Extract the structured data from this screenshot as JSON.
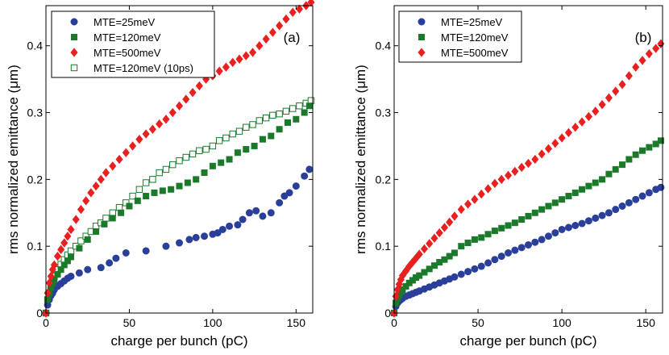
{
  "chart_data": [
    {
      "type": "scatter",
      "panel_label": "(a)",
      "xlabel": "charge per bunch (pC)",
      "ylabel": "rms normalized emittance (μm)",
      "xlim": [
        0,
        160
      ],
      "ylim": [
        0,
        0.46
      ],
      "xticks": [
        "0",
        "50",
        "100",
        "150"
      ],
      "xtick_values": [
        0,
        50,
        100,
        150
      ],
      "yticks": [
        "0",
        "0.1",
        "0.2",
        "0.3",
        "0.4"
      ],
      "ytick_values": [
        0,
        0.1,
        0.2,
        0.3,
        0.4
      ],
      "legend_position": "top-left",
      "series": [
        {
          "name": "MTE=25meV",
          "marker": "circle",
          "color": "#2a3f9a",
          "filled": true,
          "x": [
            0,
            1,
            2,
            3,
            4,
            5,
            7,
            9,
            11,
            13,
            15,
            20,
            25,
            33,
            38,
            42,
            48,
            60,
            72,
            80,
            86,
            90,
            95,
            100,
            103,
            106,
            110,
            115,
            118,
            122,
            126,
            130,
            135,
            140,
            143,
            146,
            150,
            155,
            158
          ],
          "y": [
            0,
            0.012,
            0.02,
            0.026,
            0.03,
            0.035,
            0.04,
            0.044,
            0.048,
            0.052,
            0.055,
            0.06,
            0.065,
            0.068,
            0.075,
            0.082,
            0.09,
            0.093,
            0.1,
            0.105,
            0.11,
            0.113,
            0.115,
            0.118,
            0.12,
            0.125,
            0.13,
            0.132,
            0.14,
            0.15,
            0.153,
            0.145,
            0.15,
            0.165,
            0.175,
            0.18,
            0.19,
            0.205,
            0.215
          ]
        },
        {
          "name": "MTE=120meV",
          "marker": "square",
          "color": "#1a7a2a",
          "filled": true,
          "x": [
            0,
            1,
            2,
            3,
            4,
            5,
            7,
            9,
            11,
            13,
            15,
            20,
            25,
            30,
            35,
            40,
            45,
            50,
            55,
            60,
            65,
            70,
            75,
            80,
            85,
            90,
            95,
            100,
            105,
            110,
            115,
            120,
            125,
            130,
            135,
            140,
            145,
            150,
            155,
            158
          ],
          "y": [
            0,
            0.02,
            0.03,
            0.038,
            0.045,
            0.05,
            0.058,
            0.065,
            0.072,
            0.078,
            0.084,
            0.097,
            0.11,
            0.122,
            0.133,
            0.142,
            0.15,
            0.16,
            0.168,
            0.175,
            0.18,
            0.183,
            0.185,
            0.19,
            0.195,
            0.2,
            0.21,
            0.22,
            0.225,
            0.23,
            0.24,
            0.245,
            0.25,
            0.26,
            0.265,
            0.275,
            0.285,
            0.29,
            0.3,
            0.31
          ]
        },
        {
          "name": "MTE=500meV",
          "marker": "diamond",
          "color": "#e82020",
          "filled": true,
          "x": [
            0,
            1,
            2,
            3,
            4,
            5,
            7,
            9,
            11,
            13,
            15,
            18,
            21,
            24,
            27,
            30,
            33,
            36,
            40,
            44,
            48,
            52,
            56,
            60,
            64,
            68,
            72,
            76,
            80,
            84,
            88,
            92,
            96,
            100,
            104,
            108,
            112,
            116,
            120,
            124,
            128,
            132,
            136,
            140,
            144,
            148,
            152,
            156,
            159
          ],
          "y": [
            0,
            0.03,
            0.045,
            0.055,
            0.065,
            0.072,
            0.085,
            0.095,
            0.105,
            0.115,
            0.125,
            0.14,
            0.155,
            0.168,
            0.18,
            0.19,
            0.2,
            0.21,
            0.22,
            0.23,
            0.24,
            0.25,
            0.26,
            0.268,
            0.275,
            0.283,
            0.29,
            0.3,
            0.31,
            0.32,
            0.33,
            0.34,
            0.35,
            0.355,
            0.362,
            0.368,
            0.375,
            0.38,
            0.385,
            0.39,
            0.4,
            0.41,
            0.42,
            0.43,
            0.44,
            0.45,
            0.455,
            0.46,
            0.465
          ]
        },
        {
          "name": "MTE=120meV (10ps)",
          "marker": "square",
          "color": "#1a7a2a",
          "filled": false,
          "x": [
            0,
            1,
            2,
            3,
            4,
            5,
            7,
            9,
            11,
            13,
            15,
            18,
            21,
            24,
            27,
            30,
            33,
            36,
            40,
            44,
            48,
            52,
            56,
            60,
            64,
            68,
            72,
            76,
            80,
            84,
            88,
            92,
            96,
            100,
            104,
            108,
            112,
            116,
            120,
            124,
            128,
            132,
            136,
            140,
            144,
            148,
            152,
            156,
            159
          ],
          "y": [
            0,
            0.02,
            0.03,
            0.04,
            0.048,
            0.055,
            0.065,
            0.073,
            0.08,
            0.087,
            0.093,
            0.1,
            0.108,
            0.115,
            0.122,
            0.13,
            0.135,
            0.142,
            0.15,
            0.158,
            0.165,
            0.175,
            0.185,
            0.195,
            0.2,
            0.21,
            0.215,
            0.222,
            0.228,
            0.233,
            0.238,
            0.243,
            0.245,
            0.25,
            0.258,
            0.262,
            0.268,
            0.272,
            0.278,
            0.282,
            0.288,
            0.292,
            0.296,
            0.298,
            0.302,
            0.306,
            0.31,
            0.314,
            0.318
          ]
        }
      ]
    },
    {
      "type": "scatter",
      "panel_label": "(b)",
      "xlabel": "charge per bunch (pC)",
      "ylabel": "rms normalized emittance (μm)",
      "xlim": [
        0,
        160
      ],
      "ylim": [
        0,
        0.46
      ],
      "xticks": [
        "0",
        "50",
        "100",
        "150"
      ],
      "xtick_values": [
        0,
        50,
        100,
        150
      ],
      "yticks": [
        "0",
        "0.1",
        "0.2",
        "0.3",
        "0.4"
      ],
      "ytick_values": [
        0,
        0.1,
        0.2,
        0.3,
        0.4
      ],
      "legend_position": "top-left",
      "series": [
        {
          "name": "MTE=25meV",
          "marker": "circle",
          "color": "#2a3f9a",
          "filled": true,
          "x": [
            0,
            1,
            2,
            3,
            4,
            5,
            7,
            9,
            11,
            13,
            15,
            18,
            21,
            24,
            27,
            30,
            33,
            36,
            40,
            44,
            48,
            52,
            56,
            60,
            64,
            68,
            72,
            76,
            80,
            84,
            88,
            92,
            96,
            100,
            104,
            108,
            112,
            116,
            120,
            124,
            128,
            132,
            136,
            140,
            144,
            148,
            152,
            156,
            159
          ],
          "y": [
            0,
            0.01,
            0.015,
            0.018,
            0.02,
            0.022,
            0.025,
            0.027,
            0.029,
            0.031,
            0.033,
            0.036,
            0.039,
            0.042,
            0.045,
            0.048,
            0.051,
            0.054,
            0.058,
            0.062,
            0.066,
            0.07,
            0.075,
            0.08,
            0.085,
            0.09,
            0.094,
            0.098,
            0.102,
            0.106,
            0.11,
            0.115,
            0.12,
            0.125,
            0.128,
            0.131,
            0.134,
            0.138,
            0.142,
            0.146,
            0.15,
            0.155,
            0.16,
            0.165,
            0.17,
            0.175,
            0.18,
            0.185,
            0.188
          ]
        },
        {
          "name": "MTE=120meV",
          "marker": "square",
          "color": "#1a7a2a",
          "filled": true,
          "x": [
            0,
            1,
            2,
            3,
            4,
            5,
            7,
            9,
            11,
            13,
            15,
            18,
            21,
            24,
            27,
            30,
            33,
            36,
            40,
            44,
            48,
            52,
            56,
            60,
            64,
            68,
            72,
            76,
            80,
            84,
            88,
            92,
            96,
            100,
            104,
            108,
            112,
            116,
            120,
            124,
            128,
            132,
            136,
            140,
            144,
            148,
            152,
            156,
            159
          ],
          "y": [
            0,
            0.015,
            0.022,
            0.027,
            0.031,
            0.035,
            0.04,
            0.045,
            0.049,
            0.053,
            0.056,
            0.061,
            0.066,
            0.071,
            0.076,
            0.08,
            0.085,
            0.09,
            0.1,
            0.105,
            0.11,
            0.113,
            0.118,
            0.123,
            0.127,
            0.131,
            0.135,
            0.14,
            0.145,
            0.15,
            0.155,
            0.16,
            0.165,
            0.17,
            0.175,
            0.18,
            0.185,
            0.19,
            0.195,
            0.2,
            0.208,
            0.215,
            0.222,
            0.23,
            0.237,
            0.243,
            0.248,
            0.253,
            0.258
          ]
        },
        {
          "name": "MTE=500meV",
          "marker": "diamond",
          "color": "#e82020",
          "filled": true,
          "x": [
            0,
            1,
            2,
            3,
            4,
            5,
            7,
            9,
            11,
            13,
            15,
            18,
            21,
            24,
            27,
            30,
            33,
            36,
            40,
            44,
            48,
            52,
            56,
            60,
            64,
            68,
            72,
            76,
            80,
            84,
            88,
            92,
            96,
            100,
            104,
            108,
            112,
            116,
            120,
            124,
            128,
            132,
            136,
            140,
            144,
            148,
            152,
            156,
            159
          ],
          "y": [
            0,
            0.025,
            0.035,
            0.043,
            0.05,
            0.056,
            0.063,
            0.07,
            0.076,
            0.082,
            0.088,
            0.096,
            0.104,
            0.112,
            0.12,
            0.128,
            0.136,
            0.145,
            0.155,
            0.163,
            0.17,
            0.178,
            0.186,
            0.194,
            0.2,
            0.206,
            0.212,
            0.218,
            0.224,
            0.23,
            0.238,
            0.246,
            0.254,
            0.262,
            0.27,
            0.278,
            0.286,
            0.294,
            0.302,
            0.312,
            0.322,
            0.332,
            0.342,
            0.355,
            0.368,
            0.378,
            0.388,
            0.396,
            0.403
          ]
        }
      ]
    }
  ]
}
